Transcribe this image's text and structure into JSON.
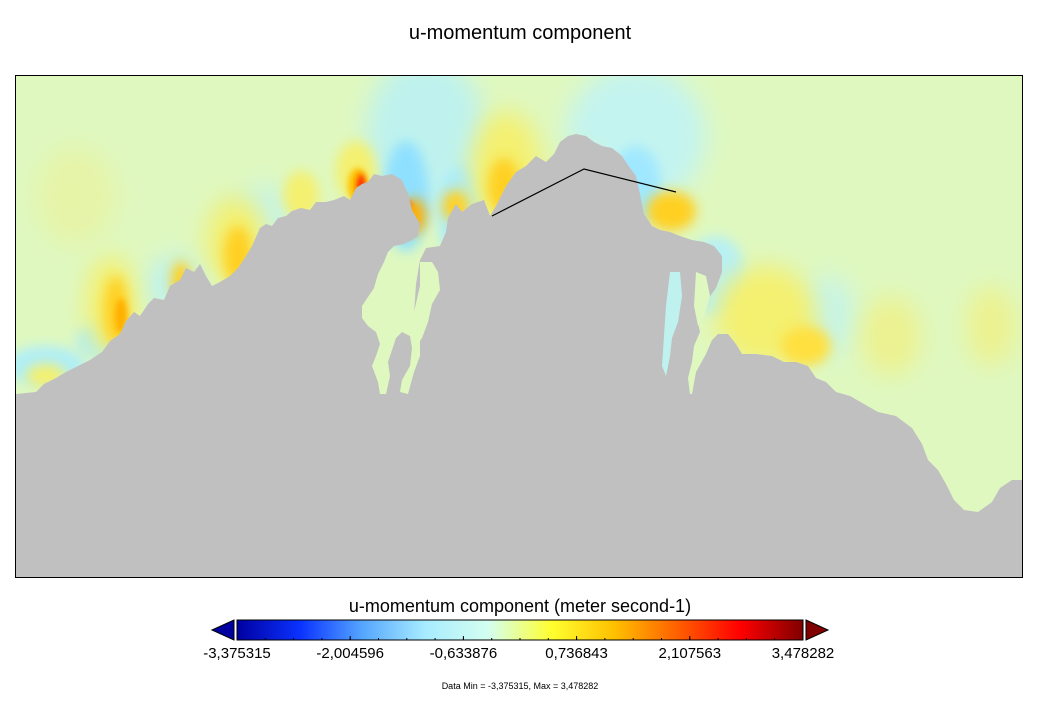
{
  "chart_data": {
    "type": "heatmap",
    "title": "u-momentum component",
    "colorbar": {
      "label": "u-momentum component (meter second-1)",
      "min": -3.375315,
      "max": 3.478282,
      "ticks": [
        -3.375315,
        -2.004596,
        -0.633876,
        0.736843,
        2.107563,
        3.478282
      ],
      "tick_labels": [
        "-3,375315",
        "-2,004596",
        "-0,633876",
        "0,736843",
        "2,107563",
        "3,478282"
      ],
      "extend": "both",
      "colormap": [
        "#0000a0",
        "#0a32ff",
        "#55a6ff",
        "#a8ecff",
        "#d4fff0",
        "#ffff30",
        "#ffc000",
        "#ff6000",
        "#ff0000",
        "#800000"
      ]
    },
    "land_color": "#c0c0c0",
    "background_value_color": "#dff8c0",
    "data_range_text": "Data Min = -3,375315, Max = 3,478282"
  }
}
